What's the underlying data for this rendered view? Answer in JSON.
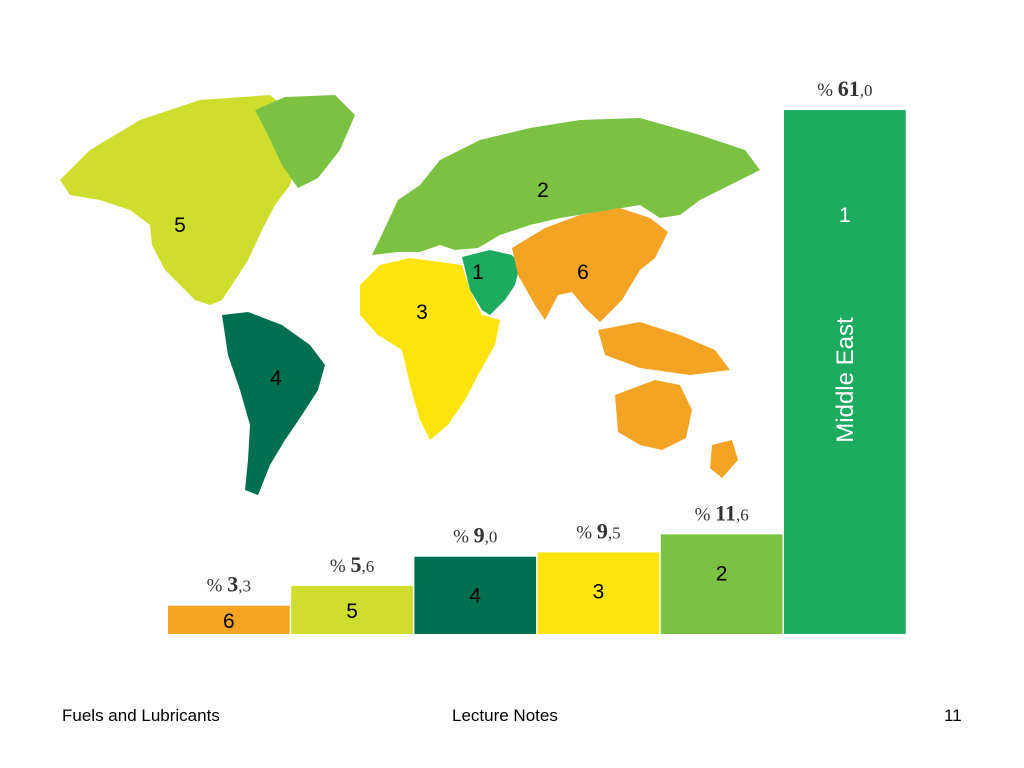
{
  "chart_data": {
    "type": "bar",
    "categories": [
      "6",
      "5",
      "4",
      "3",
      "2",
      "1"
    ],
    "values": [
      3.3,
      5.6,
      9.0,
      9.5,
      11.6,
      61.0
    ],
    "value_labels": [
      {
        "prefix": "%",
        "int": "3",
        "dec": ",3"
      },
      {
        "prefix": "%",
        "int": "5",
        "dec": ",6"
      },
      {
        "prefix": "%",
        "int": "9",
        "dec": ",0"
      },
      {
        "prefix": "%",
        "int": "9",
        "dec": ",5"
      },
      {
        "prefix": "%",
        "int": "11",
        "dec": ",6"
      },
      {
        "prefix": "%",
        "int": "61",
        "dec": ",0"
      }
    ],
    "colors": [
      "#f4a425",
      "#cedd2e",
      "#006f4f",
      "#fde40c",
      "#7cc242",
      "#1daa61"
    ],
    "bar_label_colors": [
      "#000000",
      "#000000",
      "#000000",
      "#000000",
      "#000000",
      "#ffffff"
    ],
    "highlight_label": "Middle East",
    "ylim": [
      0,
      61.0
    ]
  },
  "map": {
    "region_colors": {
      "1": "#1daa61",
      "2": "#7cc242",
      "3": "#fde40c",
      "4": "#006f4f",
      "5": "#cedd2e",
      "6": "#f4a425"
    },
    "region_labels": [
      "1",
      "2",
      "3",
      "4",
      "5",
      "6"
    ]
  },
  "footer": {
    "left": "Fuels and Lubricants",
    "center": "Lecture Notes",
    "right": "11"
  }
}
